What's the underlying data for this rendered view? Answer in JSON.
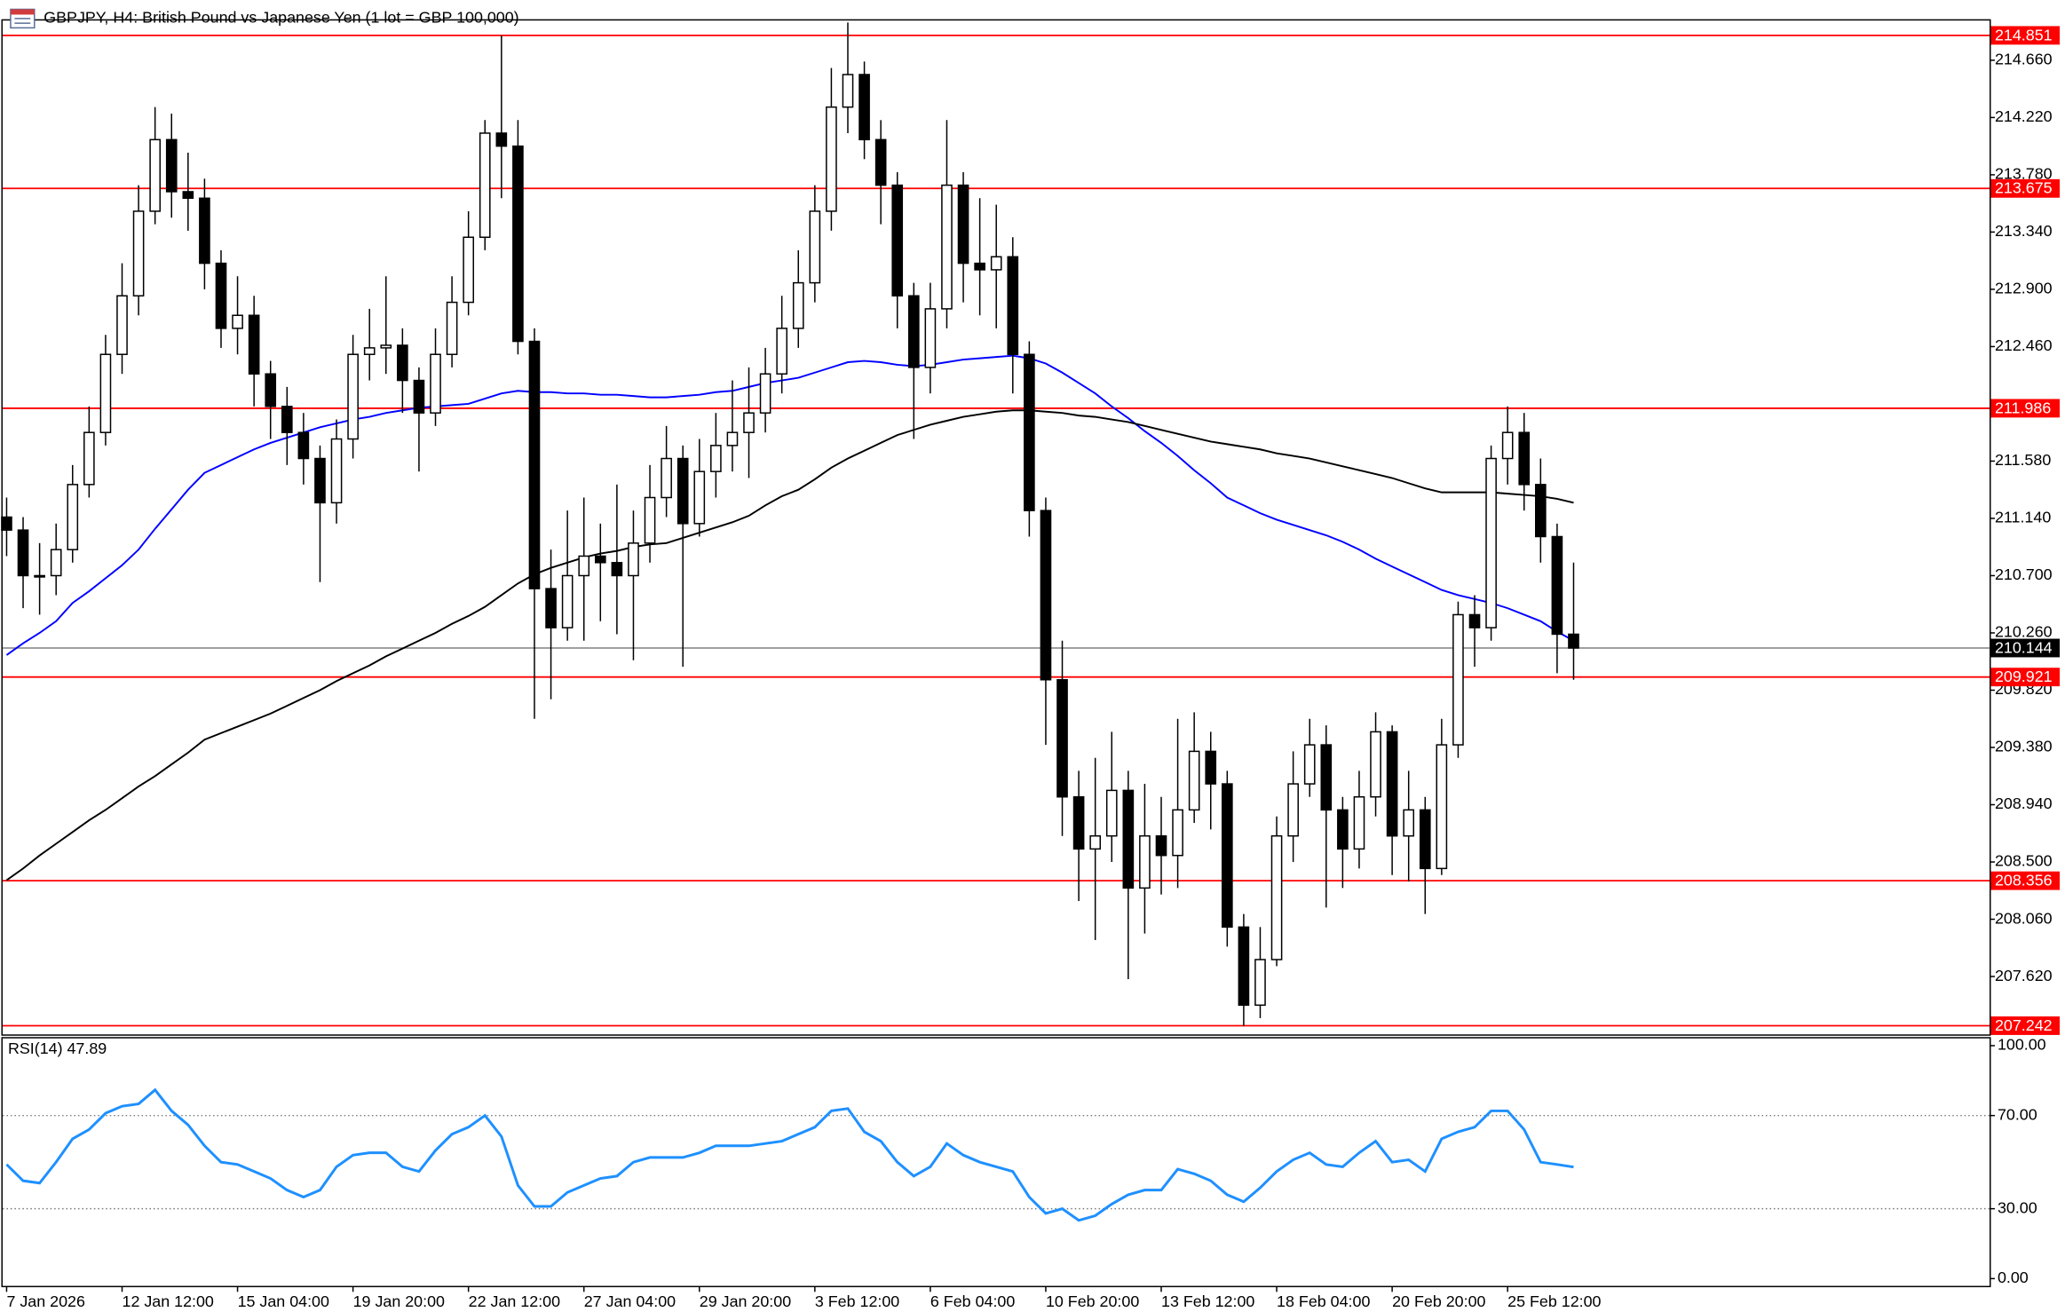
{
  "chart_data": {
    "type": "candlestick",
    "title": "GBPJPY, H4:  British Pound vs Japanese Yen (1 lot = GBP 100,000)",
    "categories": [
      "7 Jan 2026",
      null,
      null,
      null,
      null,
      null,
      null,
      "12 Jan 12:00",
      null,
      null,
      null,
      null,
      null,
      null,
      "15 Jan 04:00",
      null,
      null,
      null,
      null,
      null,
      null,
      "19 Jan 20:00",
      null,
      null,
      null,
      null,
      null,
      null,
      "22 Jan 12:00",
      null,
      null,
      null,
      null,
      null,
      null,
      "27 Jan 04:00",
      null,
      null,
      null,
      null,
      null,
      null,
      "29 Jan 20:00",
      null,
      null,
      null,
      null,
      null,
      null,
      "3 Feb 12:00",
      null,
      null,
      null,
      null,
      null,
      null,
      "6 Feb 04:00",
      null,
      null,
      null,
      null,
      null,
      null,
      "10 Feb 20:00",
      null,
      null,
      null,
      null,
      null,
      null,
      "13 Feb 12:00",
      null,
      null,
      null,
      null,
      null,
      null,
      "18 Feb 04:00",
      null,
      null,
      null,
      null,
      null,
      null,
      "20 Feb 20:00",
      null,
      null,
      null,
      null,
      null,
      null,
      "25 Feb 12:00",
      null,
      null,
      null,
      null
    ],
    "open": [
      211.15,
      211.05,
      210.7,
      210.7,
      210.9,
      211.4,
      211.8,
      212.4,
      212.85,
      213.5,
      214.05,
      213.65,
      213.6,
      213.1,
      212.6,
      212.7,
      212.25,
      212.0,
      211.8,
      211.6,
      211.26,
      211.75,
      212.4,
      212.45,
      212.47,
      212.2,
      211.95,
      212.4,
      212.8,
      213.3,
      214.1,
      214.0,
      212.5,
      210.6,
      210.3,
      210.7,
      210.85,
      210.8,
      210.7,
      210.95,
      211.3,
      211.6,
      211.1,
      211.5,
      211.7,
      211.8,
      211.95,
      212.25,
      212.6,
      212.95,
      213.5,
      214.3,
      214.55,
      214.05,
      213.7,
      212.85,
      212.3,
      212.75,
      213.7,
      213.1,
      213.05,
      213.15,
      212.4,
      211.2,
      209.9,
      209.0,
      208.6,
      208.7,
      209.05,
      208.3,
      208.7,
      208.55,
      208.9,
      209.35,
      209.1,
      208.0,
      207.4,
      207.75,
      208.7,
      209.1,
      209.4,
      208.9,
      208.6,
      209.0,
      209.5,
      208.7,
      208.9,
      208.45,
      209.4,
      210.4,
      210.3,
      211.6,
      211.8,
      211.4,
      211.0,
      210.25
    ],
    "high": [
      211.3,
      211.15,
      210.95,
      211.1,
      211.55,
      212.0,
      212.55,
      213.1,
      213.7,
      214.3,
      214.25,
      213.95,
      213.75,
      213.2,
      213.0,
      212.85,
      212.35,
      212.15,
      211.95,
      211.7,
      211.9,
      212.55,
      212.75,
      213.0,
      212.6,
      212.3,
      212.6,
      213.0,
      213.5,
      214.2,
      214.85,
      214.2,
      212.6,
      210.9,
      211.2,
      211.3,
      211.1,
      211.4,
      211.2,
      211.55,
      211.85,
      211.7,
      211.75,
      211.95,
      212.2,
      212.3,
      212.45,
      212.85,
      213.2,
      213.7,
      214.6,
      214.95,
      214.65,
      214.2,
      213.8,
      212.95,
      212.95,
      214.2,
      213.8,
      213.6,
      213.55,
      213.3,
      212.5,
      211.3,
      210.2,
      209.2,
      209.3,
      209.5,
      209.2,
      209.1,
      209.0,
      209.6,
      209.65,
      209.5,
      209.2,
      208.1,
      208.0,
      208.85,
      209.35,
      209.6,
      209.55,
      209.0,
      209.2,
      209.65,
      209.55,
      209.2,
      209.0,
      209.6,
      210.5,
      210.55,
      211.7,
      212.0,
      211.95,
      211.6,
      211.1,
      210.8
    ],
    "low": [
      210.85,
      210.45,
      210.4,
      210.55,
      210.8,
      211.3,
      211.7,
      212.25,
      212.7,
      213.4,
      213.45,
      213.35,
      212.9,
      212.45,
      212.4,
      212.0,
      211.75,
      211.55,
      211.4,
      210.65,
      211.1,
      211.6,
      212.2,
      212.25,
      211.95,
      211.5,
      211.85,
      212.3,
      212.7,
      213.2,
      213.6,
      212.4,
      209.6,
      209.75,
      210.2,
      210.2,
      210.35,
      210.25,
      210.05,
      210.8,
      211.15,
      210.0,
      211.0,
      211.3,
      211.5,
      211.45,
      211.8,
      212.1,
      212.45,
      212.8,
      213.35,
      214.1,
      213.9,
      213.4,
      212.6,
      211.75,
      212.1,
      212.6,
      212.8,
      212.7,
      212.6,
      212.1,
      211.0,
      209.4,
      208.7,
      208.2,
      207.9,
      208.5,
      207.6,
      207.95,
      208.25,
      208.3,
      208.8,
      208.75,
      207.85,
      207.24,
      207.3,
      207.7,
      208.5,
      209.0,
      208.15,
      208.3,
      208.45,
      208.85,
      208.4,
      208.35,
      208.1,
      208.4,
      209.3,
      210.0,
      210.2,
      211.4,
      211.2,
      210.8,
      209.95,
      209.9
    ],
    "close": [
      211.05,
      210.7,
      210.7,
      210.9,
      211.4,
      211.8,
      212.4,
      212.85,
      213.5,
      214.05,
      213.65,
      213.6,
      213.1,
      212.6,
      212.7,
      212.25,
      212.0,
      211.8,
      211.6,
      211.26,
      211.75,
      212.4,
      212.45,
      212.47,
      212.2,
      211.95,
      212.4,
      212.8,
      213.3,
      214.1,
      214.0,
      212.5,
      210.6,
      210.3,
      210.7,
      210.85,
      210.8,
      210.7,
      210.95,
      211.3,
      211.6,
      211.1,
      211.5,
      211.7,
      211.8,
      211.95,
      212.25,
      212.6,
      212.95,
      213.5,
      214.3,
      214.55,
      214.05,
      213.7,
      212.85,
      212.3,
      212.75,
      213.7,
      213.1,
      213.05,
      213.15,
      212.4,
      211.2,
      209.9,
      209.0,
      208.6,
      208.7,
      209.05,
      208.3,
      208.7,
      208.55,
      208.9,
      209.35,
      209.1,
      208.0,
      207.4,
      207.75,
      208.7,
      209.1,
      209.4,
      208.9,
      208.6,
      209.0,
      209.5,
      208.7,
      208.9,
      208.45,
      209.4,
      210.4,
      210.3,
      211.6,
      211.8,
      211.4,
      211.0,
      210.25,
      210.144
    ],
    "up_color": "#ffffff",
    "down_color": "#000000",
    "ylim": [
      207.17,
      214.97
    ],
    "yticks": [
      {
        "value": 207.62,
        "label": "207.620"
      },
      {
        "value": 208.06,
        "label": "208.060"
      },
      {
        "value": 208.5,
        "label": "208.500"
      },
      {
        "value": 208.94,
        "label": "208.940"
      },
      {
        "value": 209.38,
        "label": "209.380"
      },
      {
        "value": 209.82,
        "label": "209.820"
      },
      {
        "value": 210.26,
        "label": "210.260"
      },
      {
        "value": 210.7,
        "label": "210.700"
      },
      {
        "value": 211.14,
        "label": "211.140"
      },
      {
        "value": 211.58,
        "label": "211.580"
      },
      {
        "value": 212.46,
        "label": "212.460"
      },
      {
        "value": 212.9,
        "label": "212.900"
      },
      {
        "value": 213.34,
        "label": "213.340"
      },
      {
        "value": 213.78,
        "label": "213.780"
      },
      {
        "value": 214.22,
        "label": "214.220"
      },
      {
        "value": 214.66,
        "label": "214.660"
      }
    ],
    "lines": [
      {
        "color": "#0000ff",
        "values": [
          210.09,
          210.18,
          210.26,
          210.35,
          210.49,
          210.58,
          210.68,
          210.78,
          210.9,
          211.06,
          211.21,
          211.36,
          211.49,
          211.55,
          211.61,
          211.67,
          211.72,
          211.76,
          211.8,
          211.84,
          211.87,
          211.9,
          211.92,
          211.95,
          211.97,
          211.99,
          212.0,
          212.01,
          212.02,
          212.06,
          212.1,
          212.12,
          212.11,
          212.11,
          212.1,
          212.1,
          212.09,
          212.09,
          212.08,
          212.07,
          212.07,
          212.08,
          212.09,
          212.11,
          212.12,
          212.15,
          212.18,
          212.2,
          212.22,
          212.26,
          212.3,
          212.34,
          212.35,
          212.34,
          212.32,
          212.31,
          212.32,
          212.34,
          212.36,
          212.37,
          212.38,
          212.39,
          212.37,
          212.33,
          212.26,
          212.18,
          212.1,
          212.0,
          211.91,
          211.81,
          211.72,
          211.62,
          211.51,
          211.41,
          211.3,
          211.24,
          211.18,
          211.13,
          211.09,
          211.05,
          211.01,
          210.96,
          210.9,
          210.83,
          210.77,
          210.71,
          210.65,
          210.59,
          210.55,
          210.52,
          210.49,
          210.45,
          210.4,
          210.35,
          210.27,
          210.2
        ]
      },
      {
        "color": "#000000",
        "values": [
          208.36,
          208.45,
          208.55,
          208.64,
          208.73,
          208.82,
          208.9,
          208.99,
          209.08,
          209.16,
          209.25,
          209.34,
          209.44,
          209.49,
          209.54,
          209.59,
          209.64,
          209.7,
          209.76,
          209.82,
          209.89,
          209.95,
          210.01,
          210.08,
          210.14,
          210.2,
          210.26,
          210.33,
          210.39,
          210.46,
          210.55,
          210.64,
          210.71,
          210.76,
          210.8,
          210.84,
          210.87,
          210.89,
          210.92,
          210.94,
          210.95,
          210.99,
          211.03,
          211.07,
          211.11,
          211.16,
          211.24,
          211.31,
          211.36,
          211.44,
          211.53,
          211.6,
          211.66,
          211.72,
          211.78,
          211.82,
          211.86,
          211.89,
          211.92,
          211.94,
          211.96,
          211.97,
          211.97,
          211.96,
          211.95,
          211.93,
          211.92,
          211.9,
          211.88,
          211.85,
          211.82,
          211.79,
          211.76,
          211.73,
          211.71,
          211.69,
          211.67,
          211.64,
          211.62,
          211.6,
          211.57,
          211.54,
          211.51,
          211.48,
          211.45,
          211.41,
          211.37,
          211.34,
          211.34,
          211.34,
          211.34,
          211.33,
          211.32,
          211.31,
          211.29,
          211.26
        ]
      }
    ],
    "levels": {
      "color": "#ff0000",
      "values": [
        214.851,
        213.675,
        211.986,
        209.921,
        208.356,
        207.242
      ]
    },
    "last_price": {
      "value": 210.144,
      "color": "#808080"
    },
    "rsi": {
      "type": "line",
      "title": "RSI(14) 47.89",
      "color": "#1e90ff",
      "values": [
        49,
        42,
        41,
        50,
        60,
        64,
        71,
        74,
        75,
        81,
        72,
        66,
        57,
        50,
        49,
        46,
        43,
        38,
        35,
        38,
        48,
        53,
        54,
        54,
        48,
        46,
        55,
        62,
        65,
        70,
        61,
        40,
        31,
        31,
        37,
        40,
        43,
        44,
        50,
        52,
        52,
        52,
        54,
        57,
        57,
        57,
        58,
        59,
        62,
        65,
        72,
        73,
        63,
        59,
        50,
        44,
        48,
        58,
        53,
        50,
        48,
        46,
        35,
        28,
        30,
        25,
        27,
        32,
        36,
        38,
        38,
        47,
        45,
        42,
        36,
        33,
        39,
        46,
        51,
        54,
        49,
        48,
        54,
        59,
        50,
        51,
        46,
        60,
        63,
        65,
        72,
        72,
        64,
        50,
        49,
        47.89
      ],
      "ylim": [
        0,
        100
      ],
      "yticks": [
        {
          "value": 100,
          "label": "100.00"
        },
        {
          "value": 70,
          "label": "70.00"
        },
        {
          "value": 30,
          "label": "30.00"
        },
        {
          "value": 0,
          "label": "0.00"
        }
      ]
    }
  }
}
